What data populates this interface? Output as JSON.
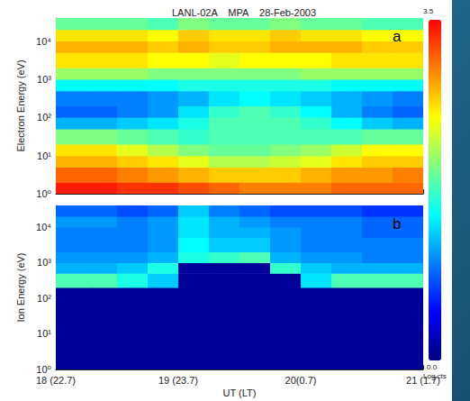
{
  "chart_data": {
    "type": "heatmap",
    "title": "LANL-02A    MPA    28-Feb-2003",
    "x_label": "UT (LT)",
    "xlim": [
      18,
      21
    ],
    "xticks": [
      {
        "value": 18,
        "label": "18 (22.7)"
      },
      {
        "value": 19,
        "label": "19 (23.7)"
      },
      {
        "value": 20,
        "label": "20(0.7)"
      },
      {
        "value": 21,
        "label": "21 (1.7)"
      }
    ],
    "log": "y",
    "colorbar": {
      "range": [
        0,
        3.5
      ],
      "ticks": [
        3.5,
        {
          "value": 0,
          "label": "0.0"
        }
      ],
      "label": "Log cts"
    },
    "panels": [
      {
        "letter": "a",
        "y_label": "Electron Energy (eV)",
        "ylim": [
          1,
          40000
        ],
        "yticks": [
          {
            "value": 1,
            "label": "10⁰"
          },
          {
            "value": 10,
            "label": "10¹"
          },
          {
            "value": 100,
            "label": "10²"
          },
          {
            "value": 1000,
            "label": "10³"
          },
          {
            "value": 10000,
            "label": "10⁴"
          }
        ],
        "tick_labels": "y",
        "time_bins": [
          18,
          18.25,
          18.5,
          18.75,
          19,
          19.25,
          19.5,
          19.75,
          20,
          20.25,
          20.5,
          20.75,
          21
        ],
        "energy_bins": [
          1,
          2,
          5,
          10,
          20,
          50,
          100,
          200,
          500,
          1000,
          2000,
          5000,
          10000,
          20000,
          40000
        ],
        "counts": [
          [
            3.4,
            3.4,
            3.3,
            3.3,
            3.2,
            3.1,
            3.0,
            3.0,
            3.0,
            3.1,
            3.1,
            3.1
          ],
          [
            3.1,
            3.1,
            3.0,
            2.9,
            2.8,
            2.7,
            2.7,
            2.7,
            2.8,
            2.9,
            2.9,
            3.0
          ],
          [
            2.8,
            2.8,
            2.7,
            2.6,
            2.4,
            2.2,
            2.2,
            2.3,
            2.4,
            2.6,
            2.7,
            2.7
          ],
          [
            2.6,
            2.6,
            2.4,
            2.2,
            2.0,
            1.9,
            1.9,
            2.0,
            2.1,
            2.3,
            2.5,
            2.5
          ],
          [
            2.0,
            2.0,
            1.9,
            1.8,
            1.7,
            1.8,
            1.8,
            1.8,
            1.8,
            1.8,
            1.9,
            1.9
          ],
          [
            1.2,
            1.2,
            1.3,
            1.4,
            1.6,
            1.8,
            1.8,
            1.8,
            1.7,
            1.5,
            1.3,
            1.2
          ],
          [
            0.9,
            0.9,
            1.0,
            1.1,
            1.4,
            1.7,
            1.8,
            1.7,
            1.5,
            1.2,
            1.0,
            0.9
          ],
          [
            1.0,
            1.0,
            1.0,
            1.1,
            1.2,
            1.4,
            1.5,
            1.4,
            1.3,
            1.2,
            1.1,
            1.0
          ],
          [
            1.5,
            1.5,
            1.5,
            1.5,
            1.6,
            1.6,
            1.6,
            1.6,
            1.6,
            1.5,
            1.5,
            1.5
          ],
          [
            2.1,
            2.1,
            2.1,
            2.0,
            2.0,
            2.0,
            2.0,
            2.0,
            2.1,
            2.1,
            2.1,
            2.1
          ],
          [
            2.6,
            2.6,
            2.6,
            2.5,
            2.5,
            2.4,
            2.5,
            2.5,
            2.5,
            2.6,
            2.6,
            2.6
          ],
          [
            2.8,
            2.8,
            2.8,
            2.7,
            2.8,
            2.7,
            2.7,
            2.8,
            2.8,
            2.8,
            2.7,
            2.7
          ],
          [
            2.6,
            2.6,
            2.6,
            2.5,
            2.7,
            2.6,
            2.6,
            2.7,
            2.6,
            2.6,
            2.5,
            2.5
          ],
          [
            1.9,
            1.9,
            1.9,
            1.8,
            2.0,
            1.9,
            1.9,
            2.0,
            1.9,
            1.9,
            1.8,
            1.8
          ]
        ]
      },
      {
        "letter": "b",
        "y_label": "Ion Energy (eV)",
        "ylim": [
          1,
          40000
        ],
        "yticks": [
          {
            "value": 1,
            "label": "10⁰"
          },
          {
            "value": 10,
            "label": "10¹"
          },
          {
            "value": 100,
            "label": "10²"
          },
          {
            "value": 1000,
            "label": "10³"
          },
          {
            "value": 10000,
            "label": "10⁴"
          }
        ],
        "time_bins": [
          18,
          18.25,
          18.5,
          18.75,
          19,
          19.25,
          19.5,
          19.75,
          20,
          20.25,
          20.5,
          20.75,
          21
        ],
        "energy_bins": [
          1,
          2,
          5,
          10,
          20,
          50,
          100,
          200,
          500,
          1000,
          2000,
          5000,
          10000,
          20000,
          40000
        ],
        "counts": [
          [
            0.1,
            0.1,
            0.1,
            0.1,
            0.1,
            0.1,
            0.1,
            0.1,
            0.1,
            0.1,
            0.1,
            0.1
          ],
          [
            0.1,
            0.1,
            0.1,
            0.1,
            0.1,
            0.1,
            0.1,
            0.1,
            0.1,
            0.1,
            0.1,
            0.1
          ],
          [
            0.1,
            0.1,
            0.1,
            0.1,
            0.1,
            0.1,
            0.1,
            0.1,
            0.1,
            0.1,
            0.1,
            0.1
          ],
          [
            0.1,
            0.1,
            0.1,
            0.1,
            0.1,
            0.1,
            0.1,
            0.1,
            0.1,
            0.1,
            0.1,
            0.1
          ],
          [
            0.1,
            0.1,
            0.1,
            0.1,
            0.1,
            0.1,
            0.1,
            0.1,
            0.1,
            0.1,
            0.1,
            0.1
          ],
          [
            0.1,
            0.1,
            0.1,
            0.1,
            0.1,
            0.1,
            0.1,
            0.1,
            0.1,
            0.1,
            0.1,
            0.1
          ],
          [
            0.1,
            0.1,
            0.1,
            0.1,
            0.1,
            0.1,
            0.1,
            0.1,
            0.1,
            0.1,
            0.1,
            0.1
          ],
          [
            1.8,
            1.8,
            1.6,
            1.3,
            0.1,
            0.1,
            0.1,
            0.1,
            1.4,
            1.8,
            1.8,
            1.8
          ],
          [
            1.2,
            1.2,
            1.3,
            1.6,
            0.1,
            0.1,
            0.1,
            1.7,
            1.3,
            1.2,
            1.2,
            1.2
          ],
          [
            1.1,
            1.1,
            1.1,
            1.2,
            1.6,
            1.7,
            1.8,
            1.2,
            1.1,
            1.1,
            1.0,
            1.0
          ],
          [
            1.0,
            1.0,
            1.0,
            1.1,
            1.5,
            1.3,
            1.3,
            1.1,
            1.0,
            1.0,
            1.0,
            1.0
          ],
          [
            1.0,
            1.0,
            1.0,
            1.1,
            1.4,
            1.2,
            1.2,
            1.1,
            1.0,
            1.0,
            0.9,
            0.9
          ],
          [
            1.1,
            1.1,
            1.0,
            1.1,
            1.4,
            1.2,
            1.1,
            1.0,
            1.0,
            1.0,
            0.9,
            0.9
          ],
          [
            0.9,
            0.9,
            0.8,
            0.9,
            1.3,
            1.0,
            0.9,
            0.8,
            0.8,
            0.8,
            0.7,
            0.7
          ]
        ]
      }
    ]
  }
}
